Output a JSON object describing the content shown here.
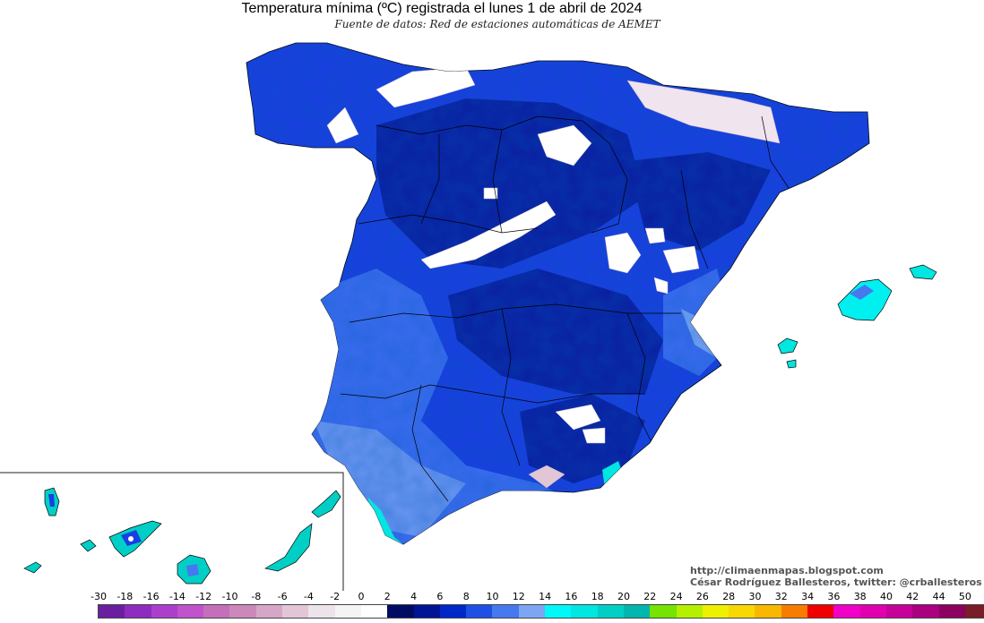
{
  "title": "Temperatura mínima (ºC) registrada el lunes 1 de abril de 2024",
  "subtitle": "Fuente de datos: Red de estaciones automáticas de AEMET",
  "credits": {
    "url": "http://climaenmapas.blogspot.com",
    "author": "César Rodríguez Ballesteros, twitter: @crballesteros"
  },
  "legend": {
    "labels": [
      "-30",
      "-18",
      "-16",
      "-14",
      "-12",
      "-10",
      "-8",
      "-6",
      "-4",
      "-2",
      "0",
      "2",
      "4",
      "6",
      "8",
      "10",
      "12",
      "14",
      "16",
      "18",
      "20",
      "22",
      "24",
      "26",
      "28",
      "30",
      "32",
      "34",
      "36",
      "38",
      "40",
      "42",
      "44",
      "50"
    ],
    "colors": [
      "#6a1fa0",
      "#8e2cc0",
      "#ab3fcc",
      "#c152cc",
      "#c46fba",
      "#cc88bb",
      "#d6a6c8",
      "#e2c6d6",
      "#ece4ea",
      "#f4f4f4",
      "#ffffff",
      "#000c64",
      "#001496",
      "#0028c8",
      "#1e50e6",
      "#4678f0",
      "#7ca6f4",
      "#00f8f8",
      "#00e6e0",
      "#00cfc6",
      "#00b6ae",
      "#74e400",
      "#b4f000",
      "#eef000",
      "#f8d800",
      "#f8b800",
      "#f87c00",
      "#f00000",
      "#f000c8",
      "#e000b0",
      "#c8009a",
      "#aa0080",
      "#8c0060",
      "#781e28"
    ]
  },
  "regions": {
    "peninsula": "Península Ibérica",
    "balearic": "Islas Baleares",
    "canary": "Islas Canarias"
  }
}
